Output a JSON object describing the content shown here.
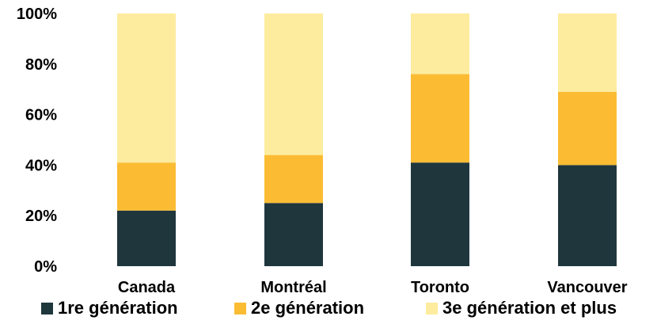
{
  "chart_data": {
    "type": "bar",
    "stacked": true,
    "categories": [
      "Canada",
      "Montréal",
      "Toronto",
      "Vancouver"
    ],
    "series": [
      {
        "name": "1re génération",
        "values": [
          22,
          25,
          41,
          40
        ],
        "color": "#1f363d"
      },
      {
        "name": "2e génération",
        "values": [
          19,
          19,
          35,
          29
        ],
        "color": "#fbbc34"
      },
      {
        "name": "3e génération et plus",
        "values": [
          59,
          56,
          24,
          31
        ],
        "color": "#fdec9e"
      }
    ],
    "y_ticks": [
      "0%",
      "20%",
      "40%",
      "60%",
      "80%",
      "100%"
    ],
    "ylim": [
      0,
      100
    ],
    "grid": false,
    "legend_position": "bottom"
  }
}
